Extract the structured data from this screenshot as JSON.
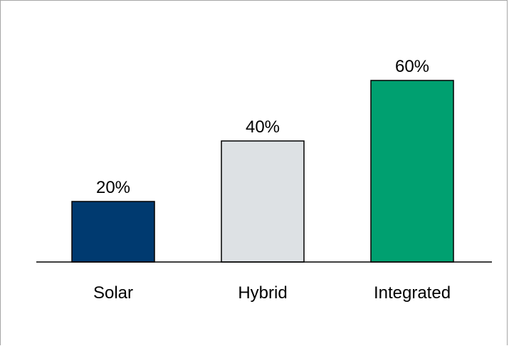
{
  "chart_data": {
    "type": "bar",
    "categories": [
      "Solar",
      "Hybrid",
      "Integrated"
    ],
    "values": [
      20,
      40,
      60
    ],
    "value_labels": [
      "20%",
      "40%",
      "60%"
    ],
    "ylim": [
      0,
      75
    ],
    "grid": false,
    "legend": "none",
    "colors": [
      "#003a70",
      "#dde1e4",
      "#00a070"
    ],
    "bar_border_color": "#000000",
    "axis_color": "#000000"
  }
}
